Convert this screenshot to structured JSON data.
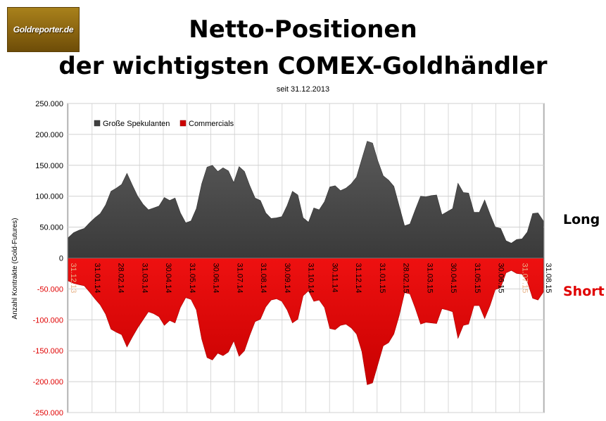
{
  "logo": {
    "text": "Goldreporter.de"
  },
  "title": {
    "line1": "Netto-Positionen",
    "line2": "der wichtigsten COMEX-Goldhändler",
    "subtitle": "seit 31.12.2013"
  },
  "side_labels": {
    "long": "Long",
    "short": "Short"
  },
  "colors": {
    "long": "#4a4a4a",
    "short": "#dd0000",
    "short_label": "#e00000",
    "logo": "#8a6410"
  },
  "chart_data": {
    "type": "area",
    "title": "",
    "ylabel": "Anzahl Kontrakte  (Gold-Futures)",
    "xlabel": "",
    "ylim": [
      -250000,
      250000
    ],
    "yticks": [
      "250.000",
      "200.000",
      "150.000",
      "100.000",
      "50.000",
      "0",
      "-50.000",
      "-100.000",
      "-150.000",
      "-200.000",
      "-250.000"
    ],
    "xticks": [
      "31.12.13",
      "31.01.14",
      "28.02.14",
      "31.03.14",
      "30.04.14",
      "31.05.14",
      "30.06.14",
      "31.07.14",
      "31.08.14",
      "30.09.14",
      "31.10.14",
      "30.11.14",
      "31.12.14",
      "31.01.15",
      "28.02.15",
      "31.03.15",
      "30.04.15",
      "31.05.15",
      "30.06.15",
      "31.07.15",
      "31.08.15"
    ],
    "grid": true,
    "legend": "top-left",
    "series": [
      {
        "name": "Große Spekulanten",
        "color": "#4a4a4a",
        "values": [
          33000,
          41000,
          45000,
          48000,
          57000,
          65000,
          72000,
          86000,
          108000,
          113000,
          119000,
          137000,
          118000,
          100000,
          87000,
          78000,
          81000,
          84000,
          98000,
          93000,
          97000,
          73000,
          57000,
          60000,
          80000,
          120000,
          147000,
          150000,
          140000,
          146000,
          141000,
          122000,
          148000,
          140000,
          117000,
          97000,
          93000,
          73000,
          64000,
          65000,
          67000,
          85000,
          108000,
          102000,
          65000,
          58000,
          81000,
          78000,
          91000,
          115000,
          117000,
          109000,
          113000,
          120000,
          131000,
          160000,
          189000,
          186000,
          157000,
          133000,
          126000,
          116000,
          84000,
          52000,
          55000,
          78000,
          100000,
          99000,
          101000,
          102000,
          70000,
          75000,
          80000,
          121000,
          106000,
          105000,
          74000,
          74000,
          94000,
          71000,
          50000,
          48000,
          28000,
          24000,
          30000,
          31000,
          42000,
          72000,
          73000,
          60000
        ]
      },
      {
        "name": "Commercials",
        "color": "#dd0000",
        "values": [
          -37000,
          -41000,
          -43000,
          -45000,
          -55000,
          -66000,
          -76000,
          -91000,
          -115000,
          -120000,
          -124000,
          -144000,
          -128000,
          -113000,
          -100000,
          -87000,
          -90000,
          -95000,
          -109000,
          -101000,
          -105000,
          -80000,
          -64000,
          -67000,
          -84000,
          -131000,
          -161000,
          -165000,
          -154000,
          -158000,
          -152000,
          -134000,
          -159000,
          -150000,
          -125000,
          -103000,
          -99000,
          -79000,
          -68000,
          -66000,
          -70000,
          -84000,
          -105000,
          -99000,
          -61000,
          -53000,
          -70000,
          -68000,
          -80000,
          -114000,
          -116000,
          -109000,
          -107000,
          -113000,
          -123000,
          -151000,
          -205000,
          -202000,
          -172000,
          -142000,
          -137000,
          -123000,
          -93000,
          -56000,
          -58000,
          -81000,
          -107000,
          -104000,
          -105000,
          -106000,
          -82000,
          -84000,
          -87000,
          -130000,
          -109000,
          -107000,
          -77000,
          -77000,
          -98000,
          -77000,
          -51000,
          -48000,
          -24000,
          -20000,
          -25000,
          -26000,
          -38000,
          -65000,
          -68000,
          -55000
        ]
      }
    ]
  }
}
